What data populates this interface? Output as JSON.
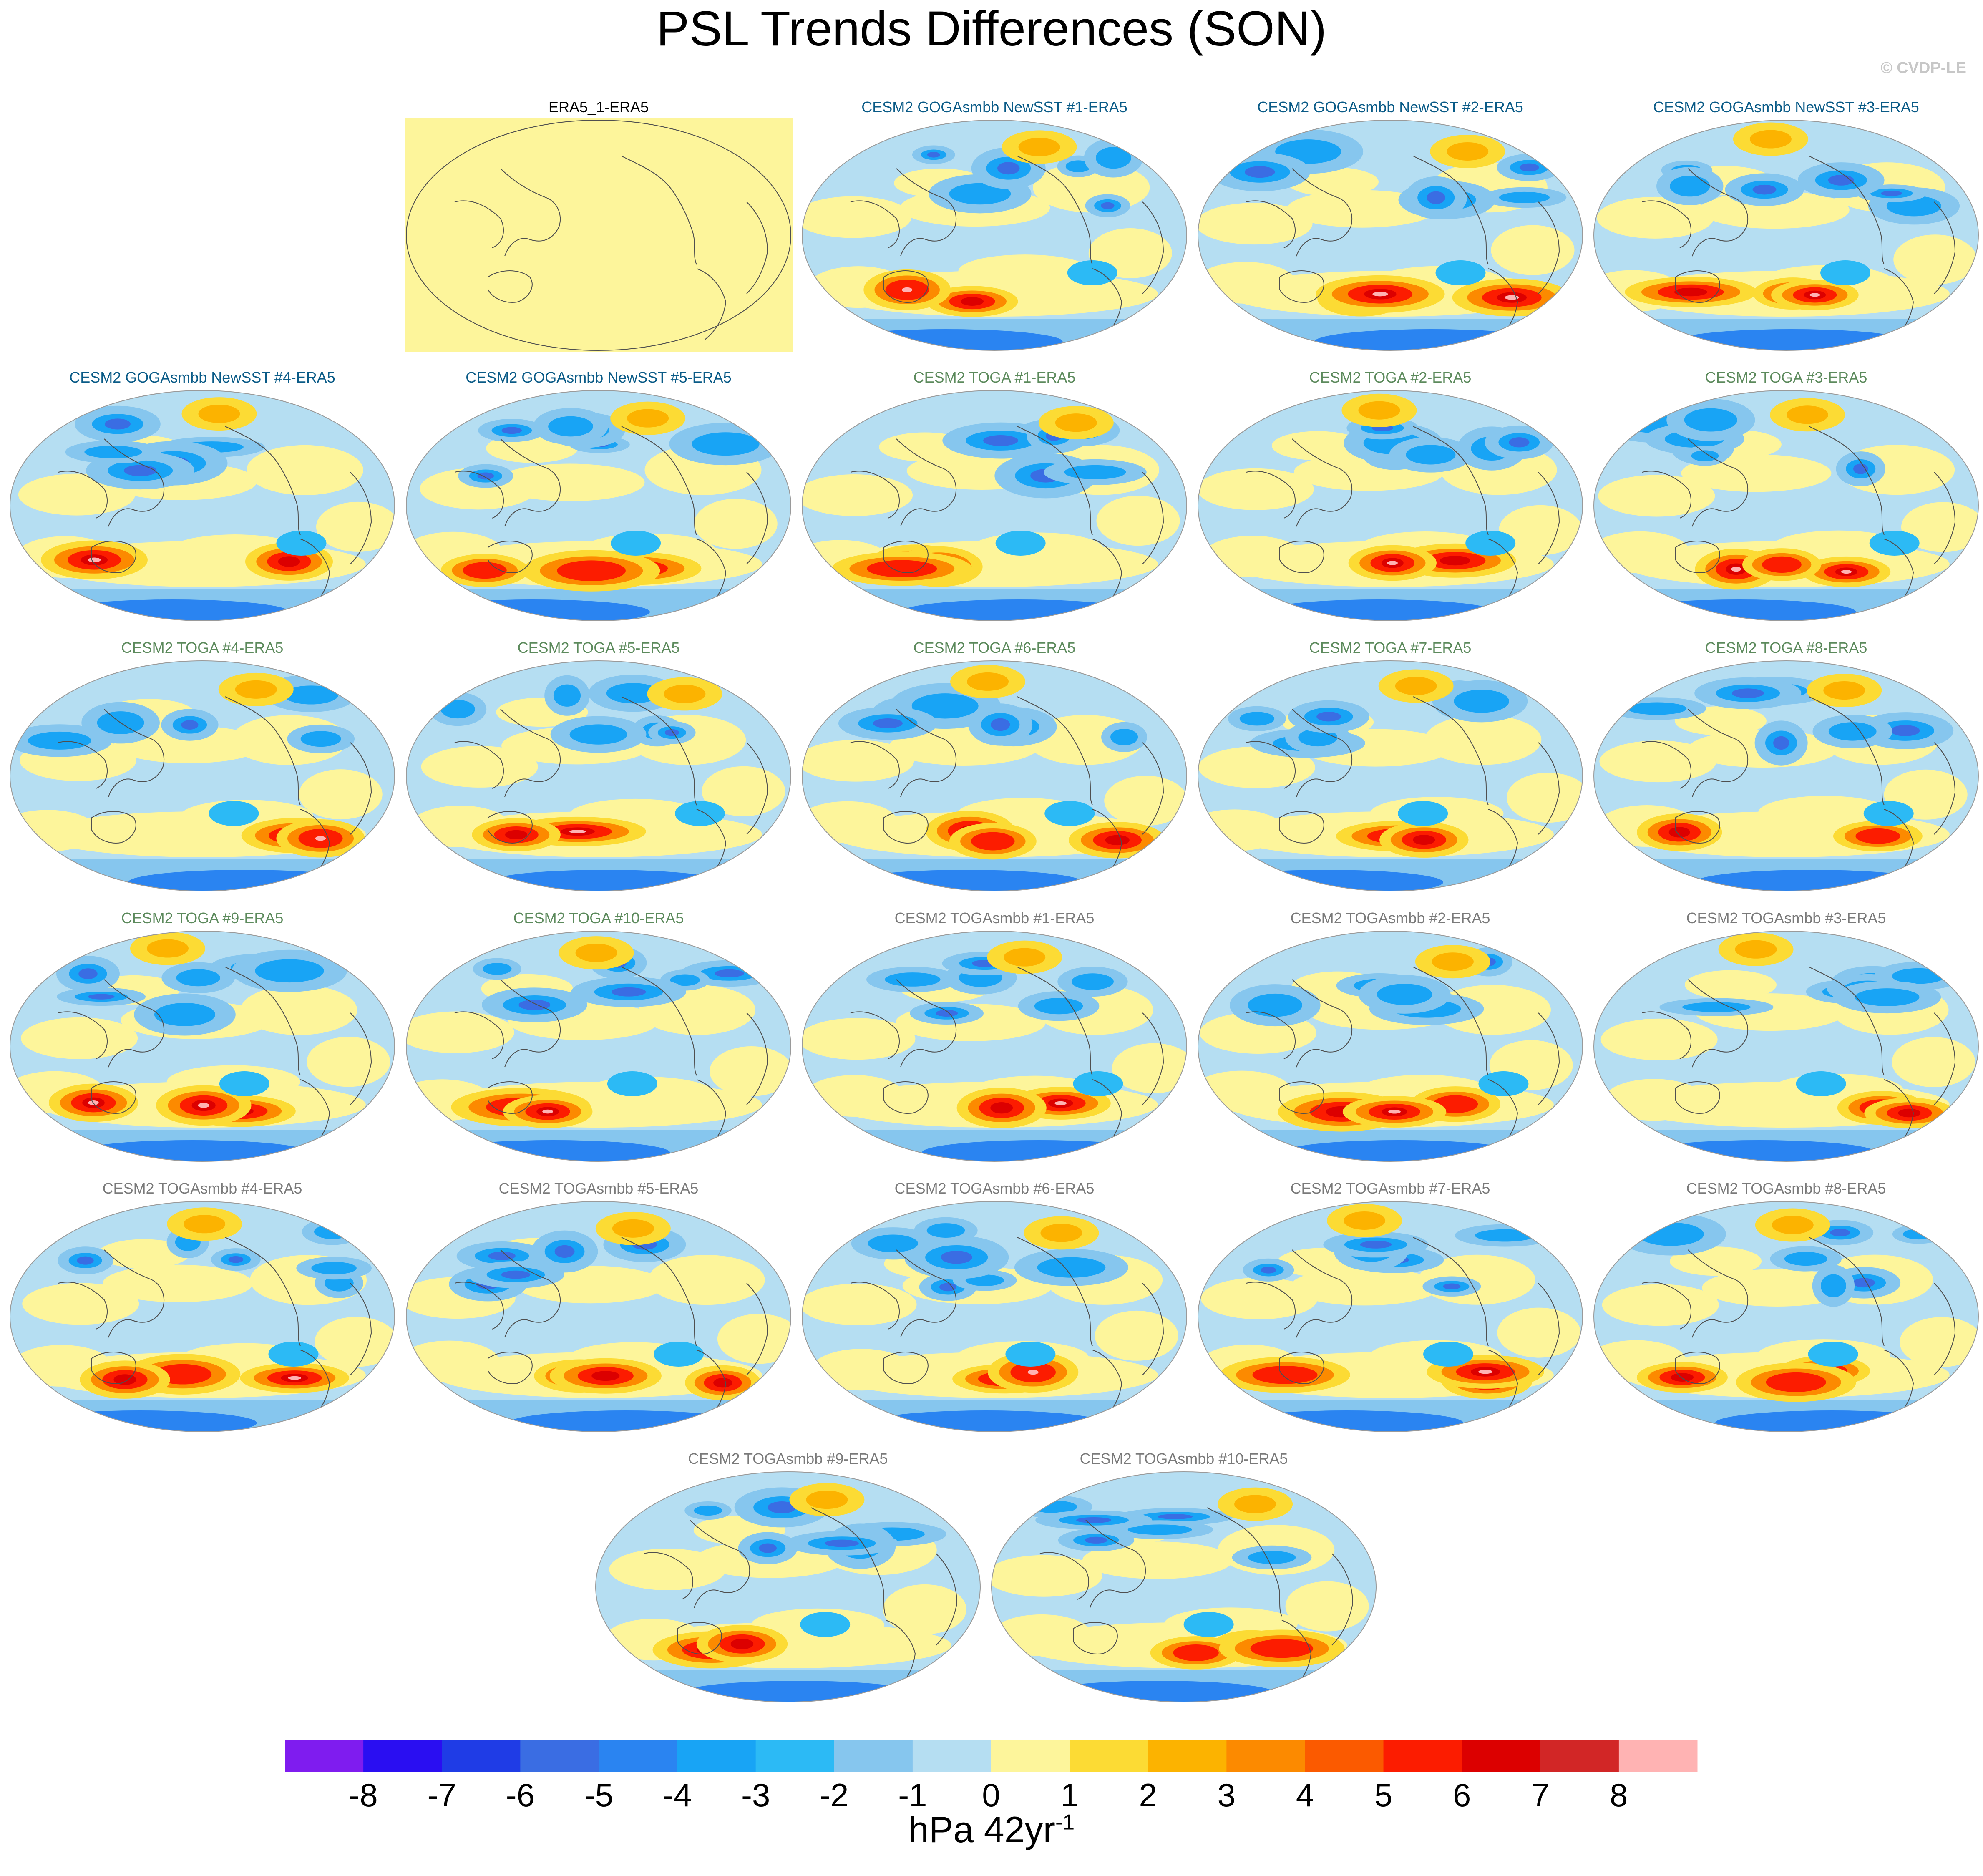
{
  "title": "PSL Trends Differences (SON)",
  "credit": "© CVDP-LE",
  "colors": {
    "levels": [
      "#7f1cef",
      "#2a0ef2",
      "#1f3ce6",
      "#3a6de3",
      "#2a84f1",
      "#18a4f5",
      "#2cbaf5",
      "#86c6ee",
      "#b5def2",
      "#fdf59b",
      "#fcdb34",
      "#fcb300",
      "#fc8a00",
      "#fb5a00",
      "#fc1c00",
      "#dc0000",
      "#d22626",
      "#ffb3b3"
    ],
    "title_obs": "#000000",
    "title_goga": "#0a5b87",
    "title_toga": "#5c8a5c",
    "title_togasmbb": "#7a7a7a",
    "coast": "#4f4f4f"
  },
  "panels": [
    {
      "label": "ERA5_1-ERA5",
      "group": "obs"
    },
    {
      "label": "CESM2 GOGAsmbb NewSST #1-ERA5",
      "group": "goga"
    },
    {
      "label": "CESM2 GOGAsmbb NewSST #2-ERA5",
      "group": "goga"
    },
    {
      "label": "CESM2 GOGAsmbb NewSST #3-ERA5",
      "group": "goga"
    },
    {
      "label": "CESM2 GOGAsmbb NewSST #4-ERA5",
      "group": "goga"
    },
    {
      "label": "CESM2 GOGAsmbb NewSST #5-ERA5",
      "group": "goga"
    },
    {
      "label": "CESM2 TOGA #1-ERA5",
      "group": "toga"
    },
    {
      "label": "CESM2 TOGA #2-ERA5",
      "group": "toga"
    },
    {
      "label": "CESM2 TOGA #3-ERA5",
      "group": "toga"
    },
    {
      "label": "CESM2 TOGA #4-ERA5",
      "group": "toga"
    },
    {
      "label": "CESM2 TOGA #5-ERA5",
      "group": "toga"
    },
    {
      "label": "CESM2 TOGA #6-ERA5",
      "group": "toga"
    },
    {
      "label": "CESM2 TOGA #7-ERA5",
      "group": "toga"
    },
    {
      "label": "CESM2 TOGA #8-ERA5",
      "group": "toga"
    },
    {
      "label": "CESM2 TOGA #9-ERA5",
      "group": "toga"
    },
    {
      "label": "CESM2 TOGA #10-ERA5",
      "group": "toga"
    },
    {
      "label": "CESM2 TOGAsmbb #1-ERA5",
      "group": "togasmbb"
    },
    {
      "label": "CESM2 TOGAsmbb #2-ERA5",
      "group": "togasmbb"
    },
    {
      "label": "CESM2 TOGAsmbb #3-ERA5",
      "group": "togasmbb"
    },
    {
      "label": "CESM2 TOGAsmbb #4-ERA5",
      "group": "togasmbb"
    },
    {
      "label": "CESM2 TOGAsmbb #5-ERA5",
      "group": "togasmbb"
    },
    {
      "label": "CESM2 TOGAsmbb #6-ERA5",
      "group": "togasmbb"
    },
    {
      "label": "CESM2 TOGAsmbb #7-ERA5",
      "group": "togasmbb"
    },
    {
      "label": "CESM2 TOGAsmbb #8-ERA5",
      "group": "togasmbb"
    },
    {
      "label": "CESM2 TOGAsmbb #9-ERA5",
      "group": "togasmbb"
    },
    {
      "label": "CESM2 TOGAsmbb #10-ERA5",
      "group": "togasmbb"
    }
  ],
  "chart_data": {
    "type": "heatmap",
    "title": "PSL Trends Differences (SON)",
    "colorbar": {
      "ticks": [
        "-8",
        "-7",
        "-6",
        "-5",
        "-4",
        "-3",
        "-2",
        "-1",
        "0",
        "1",
        "2",
        "3",
        "4",
        "5",
        "6",
        "7",
        "8"
      ],
      "units_base": "hPa 42yr",
      "units_exp": "-1"
    }
  }
}
